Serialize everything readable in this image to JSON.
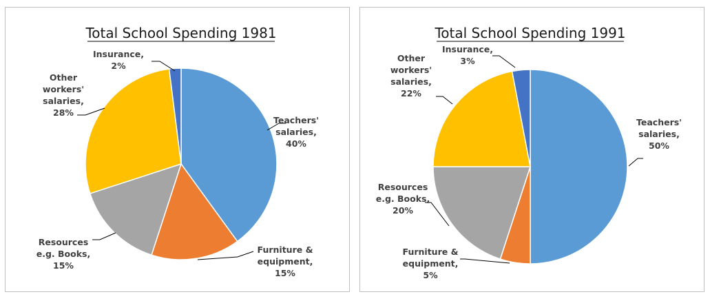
{
  "chart_data": [
    {
      "type": "pie",
      "title": "Total School Spending 1981",
      "slices": [
        {
          "label_lines": [
            "Teachers'",
            "salaries,",
            "40%"
          ],
          "value": 40,
          "color": "#5b9bd5"
        },
        {
          "label_lines": [
            "Furniture &",
            "equipment,",
            "15%"
          ],
          "value": 15,
          "color": "#ed7d31"
        },
        {
          "label_lines": [
            "Resources",
            "e.g. Books,",
            "15%"
          ],
          "value": 15,
          "color": "#a5a5a5"
        },
        {
          "label_lines": [
            "Other",
            "workers'",
            "salaries,",
            "28%"
          ],
          "value": 28,
          "color": "#ffc000"
        },
        {
          "label_lines": [
            "Insurance,",
            "2%"
          ],
          "value": 2,
          "color": "#4472c4"
        }
      ]
    },
    {
      "type": "pie",
      "title": "Total School Spending 1991",
      "slices": [
        {
          "label_lines": [
            "Teachers'",
            "salaries,",
            "50%"
          ],
          "value": 50,
          "color": "#5b9bd5"
        },
        {
          "label_lines": [
            "Furniture &",
            "equipment,",
            "5%"
          ],
          "value": 5,
          "color": "#ed7d31"
        },
        {
          "label_lines": [
            "Resources",
            "e.g. Books,",
            "20%"
          ],
          "value": 20,
          "color": "#a5a5a5"
        },
        {
          "label_lines": [
            "Other",
            "workers'",
            "salaries,",
            "22%"
          ],
          "value": 22,
          "color": "#ffc000"
        },
        {
          "label_lines": [
            "Insurance,",
            "3%"
          ],
          "value": 3,
          "color": "#4472c4"
        }
      ]
    }
  ]
}
